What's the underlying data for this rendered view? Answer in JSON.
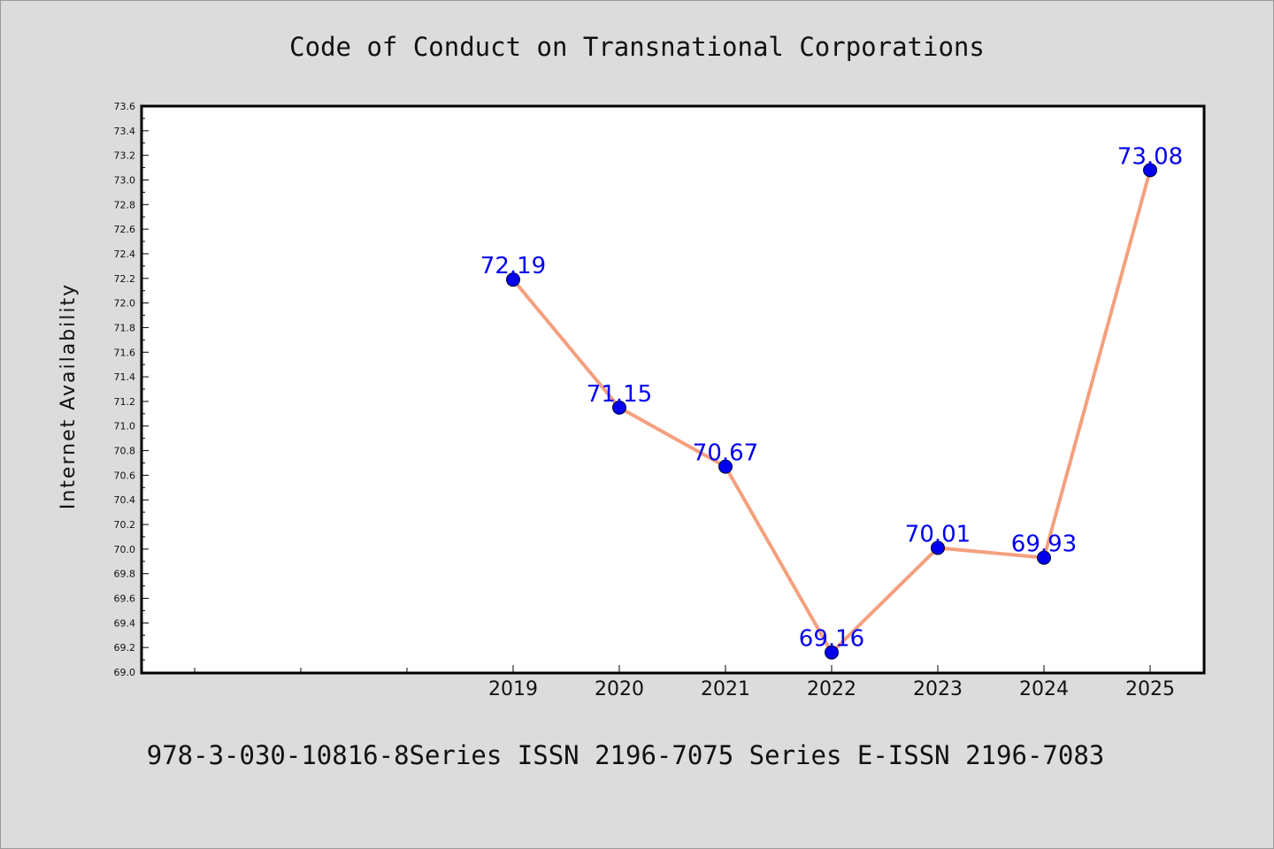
{
  "chart_data": {
    "type": "line",
    "title": "Code of Conduct on Transnational Corporations",
    "xlabel": "",
    "ylabel": "Internet Availability",
    "categories": [
      "2019",
      "2020",
      "2021",
      "2022",
      "2023",
      "2024",
      "2025"
    ],
    "series": [
      {
        "values": [
          72.19,
          71.15,
          70.67,
          69.16,
          70.01,
          69.93,
          73.08
        ]
      }
    ],
    "data_labels": [
      "72.19",
      "71.15",
      "70.67",
      "69.16",
      "70.01",
      "69.93",
      "73.08"
    ],
    "ylim": [
      69.0,
      73.6
    ],
    "yticks": [
      "69.0",
      "69.2",
      "69.4",
      "69.6",
      "69.8",
      "70.0",
      "70.2",
      "70.4",
      "70.6",
      "70.8",
      "71.0",
      "71.2",
      "71.4",
      "71.6",
      "71.8",
      "72.0",
      "72.2",
      "72.4",
      "72.6",
      "72.8",
      "73.0",
      "73.2",
      "73.4",
      "73.6"
    ],
    "grid": false,
    "legend": "none",
    "colors": {
      "line": "#f4a07e",
      "marker": "#0000ee",
      "label": "#0000ee",
      "background": "#dcdcdc",
      "plot": "#ffffff"
    }
  },
  "footer": "978-3-030-10816-8Series ISSN 2196-7075 Series E-ISSN 2196-7083"
}
